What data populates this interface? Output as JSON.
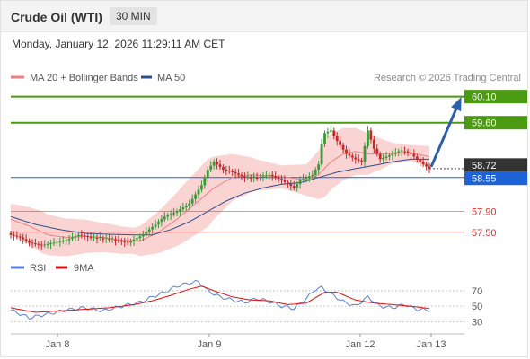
{
  "header": {
    "title": "Crude Oil (WTI)",
    "timeframe": "30 MIN",
    "datetime": "Monday, January 12, 2026 11:29:11 AM CET"
  },
  "credit": "Research © 2026 Trading Central",
  "colors": {
    "target": "#4a9a12",
    "current": "#1e62d8",
    "support": "#e03030",
    "candle_up": "#3a9a3a",
    "candle_down": "#c62828",
    "bollinger_fill": "#f8c4c4",
    "ma20": "#f08080",
    "ma50": "#2c4f8c",
    "rsi": "#5b7fdc",
    "rsi_ma": "#e01010",
    "arrow": "#2b5fa8"
  },
  "chart_data": [
    {
      "type": "candlestick",
      "title": "Crude Oil (WTI) 30 MIN",
      "ylim": [
        57.1,
        60.3
      ],
      "x_ticks": [
        "Jan 8",
        "Jan 9",
        "Jan 12",
        "Jan 13"
      ],
      "legend": [
        {
          "label": "MA 20 + Bollinger Bands",
          "color": "#f08080"
        },
        {
          "label": "MA 50",
          "color": "#2c4f8c"
        }
      ],
      "levels": [
        {
          "label": "60.10",
          "value": 60.1,
          "kind": "target"
        },
        {
          "label": "59.60",
          "value": 59.6,
          "kind": "target"
        },
        {
          "label": "58.72",
          "value": 58.72,
          "kind": "last"
        },
        {
          "label": "58.55",
          "value": 58.55,
          "kind": "pivot"
        },
        {
          "label": "57.90",
          "value": 57.9,
          "kind": "support"
        },
        {
          "label": "57.50",
          "value": 57.5,
          "kind": "support"
        }
      ],
      "price_path": [
        [
          0,
          57.45
        ],
        [
          3,
          57.4
        ],
        [
          6,
          57.3
        ],
        [
          10,
          57.25
        ],
        [
          14,
          57.3
        ],
        [
          18,
          57.35
        ],
        [
          22,
          57.45
        ],
        [
          26,
          57.4
        ],
        [
          30,
          57.38
        ],
        [
          34,
          57.35
        ],
        [
          38,
          57.3
        ],
        [
          42,
          57.42
        ],
        [
          46,
          57.6
        ],
        [
          50,
          57.8
        ],
        [
          54,
          57.9
        ],
        [
          58,
          58.05
        ],
        [
          62,
          58.4
        ],
        [
          64,
          58.7
        ],
        [
          66,
          58.85
        ],
        [
          69,
          58.7
        ],
        [
          72,
          58.65
        ],
        [
          76,
          58.55
        ],
        [
          80,
          58.55
        ],
        [
          84,
          58.6
        ],
        [
          88,
          58.5
        ],
        [
          92,
          58.35
        ],
        [
          94,
          58.5
        ],
        [
          98,
          58.6
        ],
        [
          100,
          58.8
        ],
        [
          101,
          59.2
        ],
        [
          102,
          59.4
        ],
        [
          104,
          59.45
        ],
        [
          106,
          59.25
        ],
        [
          109,
          59.0
        ],
        [
          112,
          58.9
        ],
        [
          114,
          58.85
        ],
        [
          116,
          59.45
        ],
        [
          118,
          59.1
        ],
        [
          120,
          58.9
        ],
        [
          122,
          58.95
        ],
        [
          124,
          59.0
        ],
        [
          126,
          59.05
        ],
        [
          128,
          59.05
        ],
        [
          130,
          59.0
        ],
        [
          132,
          58.9
        ],
        [
          134,
          58.8
        ],
        [
          136,
          58.72
        ]
      ],
      "ma20_path": [
        [
          0,
          57.75
        ],
        [
          6,
          57.62
        ],
        [
          12,
          57.45
        ],
        [
          18,
          57.4
        ],
        [
          24,
          57.42
        ],
        [
          30,
          57.4
        ],
        [
          36,
          57.35
        ],
        [
          42,
          57.33
        ],
        [
          48,
          57.5
        ],
        [
          54,
          57.75
        ],
        [
          60,
          58.05
        ],
        [
          66,
          58.35
        ],
        [
          72,
          58.55
        ],
        [
          78,
          58.6
        ],
        [
          84,
          58.58
        ],
        [
          90,
          58.55
        ],
        [
          96,
          58.5
        ],
        [
          100,
          58.6
        ],
        [
          104,
          58.85
        ],
        [
          108,
          59.0
        ],
        [
          112,
          59.05
        ],
        [
          116,
          59.0
        ],
        [
          120,
          59.0
        ],
        [
          126,
          59.02
        ],
        [
          130,
          59.02
        ],
        [
          136,
          58.95
        ]
      ],
      "ma50_path": [
        [
          0,
          57.8
        ],
        [
          8,
          57.65
        ],
        [
          16,
          57.55
        ],
        [
          24,
          57.48
        ],
        [
          32,
          57.46
        ],
        [
          40,
          57.45
        ],
        [
          46,
          57.45
        ],
        [
          52,
          57.55
        ],
        [
          58,
          57.7
        ],
        [
          64,
          57.9
        ],
        [
          70,
          58.1
        ],
        [
          76,
          58.25
        ],
        [
          82,
          58.35
        ],
        [
          88,
          58.42
        ],
        [
          94,
          58.45
        ],
        [
          100,
          58.55
        ],
        [
          106,
          58.65
        ],
        [
          112,
          58.72
        ],
        [
          118,
          58.78
        ],
        [
          124,
          58.85
        ],
        [
          130,
          58.9
        ],
        [
          136,
          58.9
        ]
      ],
      "bb_width_path": [
        [
          0,
          0.3
        ],
        [
          10,
          0.4
        ],
        [
          20,
          0.35
        ],
        [
          30,
          0.28
        ],
        [
          40,
          0.25
        ],
        [
          48,
          0.4
        ],
        [
          56,
          0.55
        ],
        [
          64,
          0.65
        ],
        [
          72,
          0.45
        ],
        [
          80,
          0.3
        ],
        [
          88,
          0.22
        ],
        [
          96,
          0.3
        ],
        [
          102,
          0.55
        ],
        [
          108,
          0.5
        ],
        [
          116,
          0.4
        ],
        [
          124,
          0.2
        ],
        [
          130,
          0.15
        ],
        [
          136,
          0.2
        ]
      ]
    },
    {
      "type": "line",
      "legend": [
        {
          "label": "RSI",
          "color": "#5b7fdc"
        },
        {
          "label": "9MA",
          "color": "#e01010"
        }
      ],
      "ylim": [
        20,
        85
      ],
      "y_ticks": [
        "70",
        "50",
        "30"
      ],
      "rsi_path": [
        [
          0,
          45
        ],
        [
          6,
          35
        ],
        [
          12,
          40
        ],
        [
          18,
          45
        ],
        [
          24,
          48
        ],
        [
          30,
          44
        ],
        [
          36,
          50
        ],
        [
          42,
          55
        ],
        [
          46,
          62
        ],
        [
          50,
          68
        ],
        [
          54,
          76
        ],
        [
          58,
          80
        ],
        [
          61,
          82
        ],
        [
          64,
          70
        ],
        [
          68,
          62
        ],
        [
          72,
          58
        ],
        [
          76,
          55
        ],
        [
          80,
          60
        ],
        [
          84,
          56
        ],
        [
          88,
          50
        ],
        [
          92,
          47
        ],
        [
          96,
          60
        ],
        [
          99,
          72
        ],
        [
          101,
          74
        ],
        [
          104,
          66
        ],
        [
          108,
          56
        ],
        [
          112,
          50
        ],
        [
          116,
          62
        ],
        [
          120,
          50
        ],
        [
          124,
          48
        ],
        [
          128,
          52
        ],
        [
          132,
          46
        ],
        [
          136,
          45
        ]
      ],
      "rsi_ma_path": [
        [
          0,
          48
        ],
        [
          8,
          42
        ],
        [
          16,
          44
        ],
        [
          24,
          46
        ],
        [
          32,
          48
        ],
        [
          40,
          52
        ],
        [
          46,
          57
        ],
        [
          52,
          64
        ],
        [
          58,
          72
        ],
        [
          62,
          76
        ],
        [
          66,
          70
        ],
        [
          72,
          62
        ],
        [
          78,
          58
        ],
        [
          84,
          57
        ],
        [
          90,
          52
        ],
        [
          96,
          54
        ],
        [
          102,
          68
        ],
        [
          106,
          68
        ],
        [
          112,
          58
        ],
        [
          118,
          54
        ],
        [
          124,
          52
        ],
        [
          130,
          50
        ],
        [
          136,
          47
        ]
      ]
    }
  ]
}
